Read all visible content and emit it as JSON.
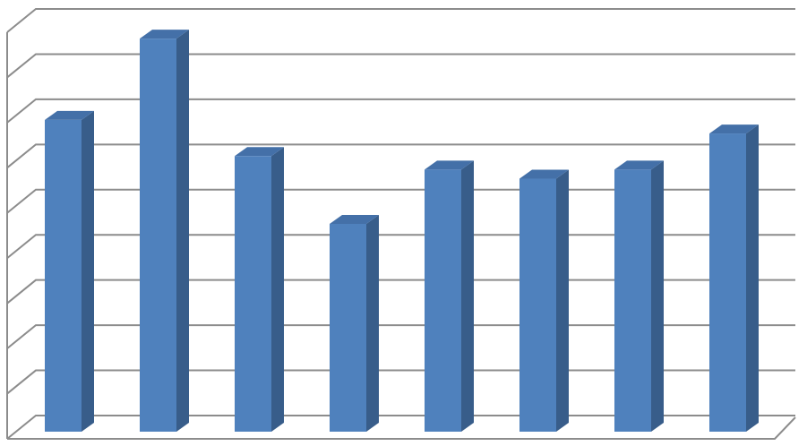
{
  "chart_data": {
    "type": "bar",
    "values": [
      6.9,
      8.7,
      6.1,
      4.6,
      5.8,
      5.6,
      5.8,
      6.6
    ],
    "color": "#4f81bd",
    "side_color": "#385d8a",
    "top_color": "#4470a8",
    "ylim": [
      0,
      9
    ],
    "yticks": [
      0,
      1,
      2,
      3,
      4,
      5,
      6,
      7,
      8,
      9
    ],
    "grid": true
  }
}
